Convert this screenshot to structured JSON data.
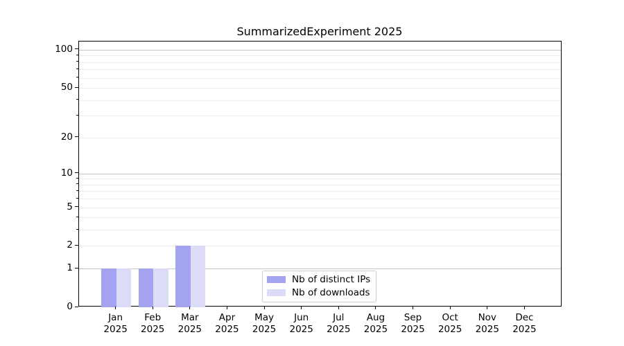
{
  "chart_data": {
    "type": "bar",
    "title": "SummarizedExperiment 2025",
    "categories": [
      {
        "month": "Jan",
        "year": "2025"
      },
      {
        "month": "Feb",
        "year": "2025"
      },
      {
        "month": "Mar",
        "year": "2025"
      },
      {
        "month": "Apr",
        "year": "2025"
      },
      {
        "month": "May",
        "year": "2025"
      },
      {
        "month": "Jun",
        "year": "2025"
      },
      {
        "month": "Jul",
        "year": "2025"
      },
      {
        "month": "Aug",
        "year": "2025"
      },
      {
        "month": "Sep",
        "year": "2025"
      },
      {
        "month": "Oct",
        "year": "2025"
      },
      {
        "month": "Nov",
        "year": "2025"
      },
      {
        "month": "Dec",
        "year": "2025"
      }
    ],
    "series": [
      {
        "name": "Nb of distinct IPs",
        "color": "#a3a3f0",
        "values": [
          1,
          1,
          2,
          0,
          0,
          0,
          0,
          0,
          0,
          0,
          0,
          0
        ]
      },
      {
        "name": "Nb of downloads",
        "color": "#dcdcf8",
        "values": [
          1,
          1,
          2,
          0,
          0,
          0,
          0,
          0,
          0,
          0,
          0,
          0
        ]
      }
    ],
    "y_axis": {
      "scale": "log1p",
      "ticks_labeled": [
        100,
        50,
        20,
        10,
        5,
        2,
        1,
        0
      ],
      "gridlines_major": [
        100,
        10,
        1
      ],
      "gridlines_minor": [
        90,
        80,
        70,
        60,
        50,
        40,
        30,
        20,
        9,
        8,
        7,
        6,
        5,
        4,
        3,
        2
      ],
      "range": [
        0,
        116
      ]
    },
    "legend": {
      "position": "lower center"
    }
  }
}
